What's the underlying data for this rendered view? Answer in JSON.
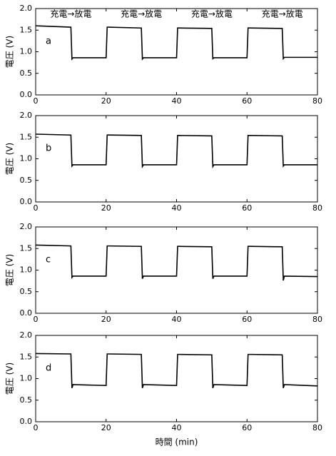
{
  "chart_data": [
    {
      "type": "line",
      "label": "a",
      "ylabel": "電圧 (V)",
      "annotations": [
        "充電→放電",
        "充電→放電",
        "充電→放電",
        "充電→放電"
      ],
      "x": [
        0,
        0.2,
        10,
        10.3,
        10.6,
        20,
        20.3,
        20.6,
        30,
        30.3,
        30.6,
        40,
        40.3,
        40.6,
        50,
        50.3,
        50.6,
        60,
        60.3,
        60.6,
        70,
        70.3,
        70.6,
        80
      ],
      "values": [
        1.6,
        1.6,
        1.57,
        0.83,
        0.86,
        0.86,
        1.57,
        1.57,
        1.55,
        0.83,
        0.86,
        0.86,
        1.55,
        1.55,
        1.54,
        0.84,
        0.86,
        0.86,
        1.55,
        1.55,
        1.54,
        0.84,
        0.87,
        0.87
      ],
      "color": "#000000",
      "xlim": [
        0,
        80
      ],
      "xticks": [
        0,
        20,
        40,
        60,
        80
      ],
      "ylim": [
        0,
        2
      ],
      "yticks": [
        {
          "value": 0,
          "label": "0.0"
        },
        {
          "value": 0.5,
          "label": "0.5"
        },
        {
          "value": 1,
          "label": "1.0"
        },
        {
          "value": 1.5,
          "label": "1.5"
        },
        {
          "value": 2,
          "label": "2.0"
        }
      ]
    },
    {
      "type": "line",
      "label": "b",
      "ylabel": "電圧 (V)",
      "x": [
        0,
        0.2,
        10,
        10.3,
        10.6,
        20,
        20.3,
        20.6,
        30,
        30.3,
        30.6,
        40,
        40.3,
        40.6,
        50,
        50.3,
        50.6,
        60,
        60.3,
        60.6,
        70,
        70.3,
        70.6,
        80
      ],
      "values": [
        1.57,
        1.57,
        1.55,
        0.83,
        0.86,
        0.86,
        1.55,
        1.55,
        1.54,
        0.82,
        0.86,
        0.86,
        1.54,
        1.54,
        1.53,
        0.82,
        0.86,
        0.86,
        1.54,
        1.54,
        1.53,
        0.83,
        0.86,
        0.86
      ],
      "color": "#000000",
      "xlim": [
        0,
        80
      ],
      "xticks": [
        0,
        20,
        40,
        60,
        80
      ],
      "ylim": [
        0,
        2
      ],
      "yticks": [
        {
          "value": 0,
          "label": "0.0"
        },
        {
          "value": 0.5,
          "label": "0.5"
        },
        {
          "value": 1,
          "label": "1.0"
        },
        {
          "value": 1.5,
          "label": "1.5"
        },
        {
          "value": 2,
          "label": "2.0"
        }
      ]
    },
    {
      "type": "line",
      "label": "c",
      "ylabel": "電圧 (V)",
      "x": [
        0,
        0.2,
        10,
        10.3,
        10.6,
        20,
        20.3,
        20.6,
        30,
        30.3,
        30.6,
        40,
        40.3,
        40.6,
        50,
        50.3,
        50.6,
        60,
        60.3,
        60.6,
        70,
        70.3,
        70.6,
        80
      ],
      "values": [
        1.58,
        1.58,
        1.56,
        0.83,
        0.86,
        0.86,
        1.56,
        1.56,
        1.55,
        0.8,
        0.86,
        0.86,
        1.55,
        1.55,
        1.54,
        0.8,
        0.86,
        0.86,
        1.55,
        1.55,
        1.54,
        0.76,
        0.86,
        0.85
      ],
      "color": "#000000",
      "xlim": [
        0,
        80
      ],
      "xticks": [
        0,
        20,
        40,
        60,
        80
      ],
      "ylim": [
        0,
        2
      ],
      "yticks": [
        {
          "value": 0,
          "label": "0.0"
        },
        {
          "value": 0.5,
          "label": "0.5"
        },
        {
          "value": 1,
          "label": "1.0"
        },
        {
          "value": 1.5,
          "label": "1.5"
        },
        {
          "value": 2,
          "label": "2.0"
        }
      ]
    },
    {
      "type": "line",
      "label": "d",
      "ylabel": "電圧 (V)",
      "xlabel": "時間 (min)",
      "x": [
        0,
        0.2,
        10,
        10.3,
        10.6,
        20,
        20.3,
        20.6,
        30,
        30.3,
        30.6,
        40,
        40.3,
        40.6,
        50,
        50.3,
        50.6,
        60,
        60.3,
        60.6,
        70,
        70.3,
        70.6,
        80
      ],
      "values": [
        1.58,
        1.58,
        1.57,
        0.78,
        0.86,
        0.84,
        1.57,
        1.57,
        1.56,
        0.78,
        0.86,
        0.84,
        1.56,
        1.56,
        1.55,
        0.78,
        0.86,
        0.84,
        1.56,
        1.56,
        1.55,
        0.78,
        0.86,
        0.83
      ],
      "color": "#000000",
      "xlim": [
        0,
        80
      ],
      "xticks": [
        0,
        20,
        40,
        60,
        80
      ],
      "ylim": [
        0,
        2
      ],
      "yticks": [
        {
          "value": 0,
          "label": "0.0"
        },
        {
          "value": 0.5,
          "label": "0.5"
        },
        {
          "value": 1,
          "label": "1.0"
        },
        {
          "value": 1.5,
          "label": "1.5"
        },
        {
          "value": 2,
          "label": "2.0"
        }
      ]
    }
  ]
}
